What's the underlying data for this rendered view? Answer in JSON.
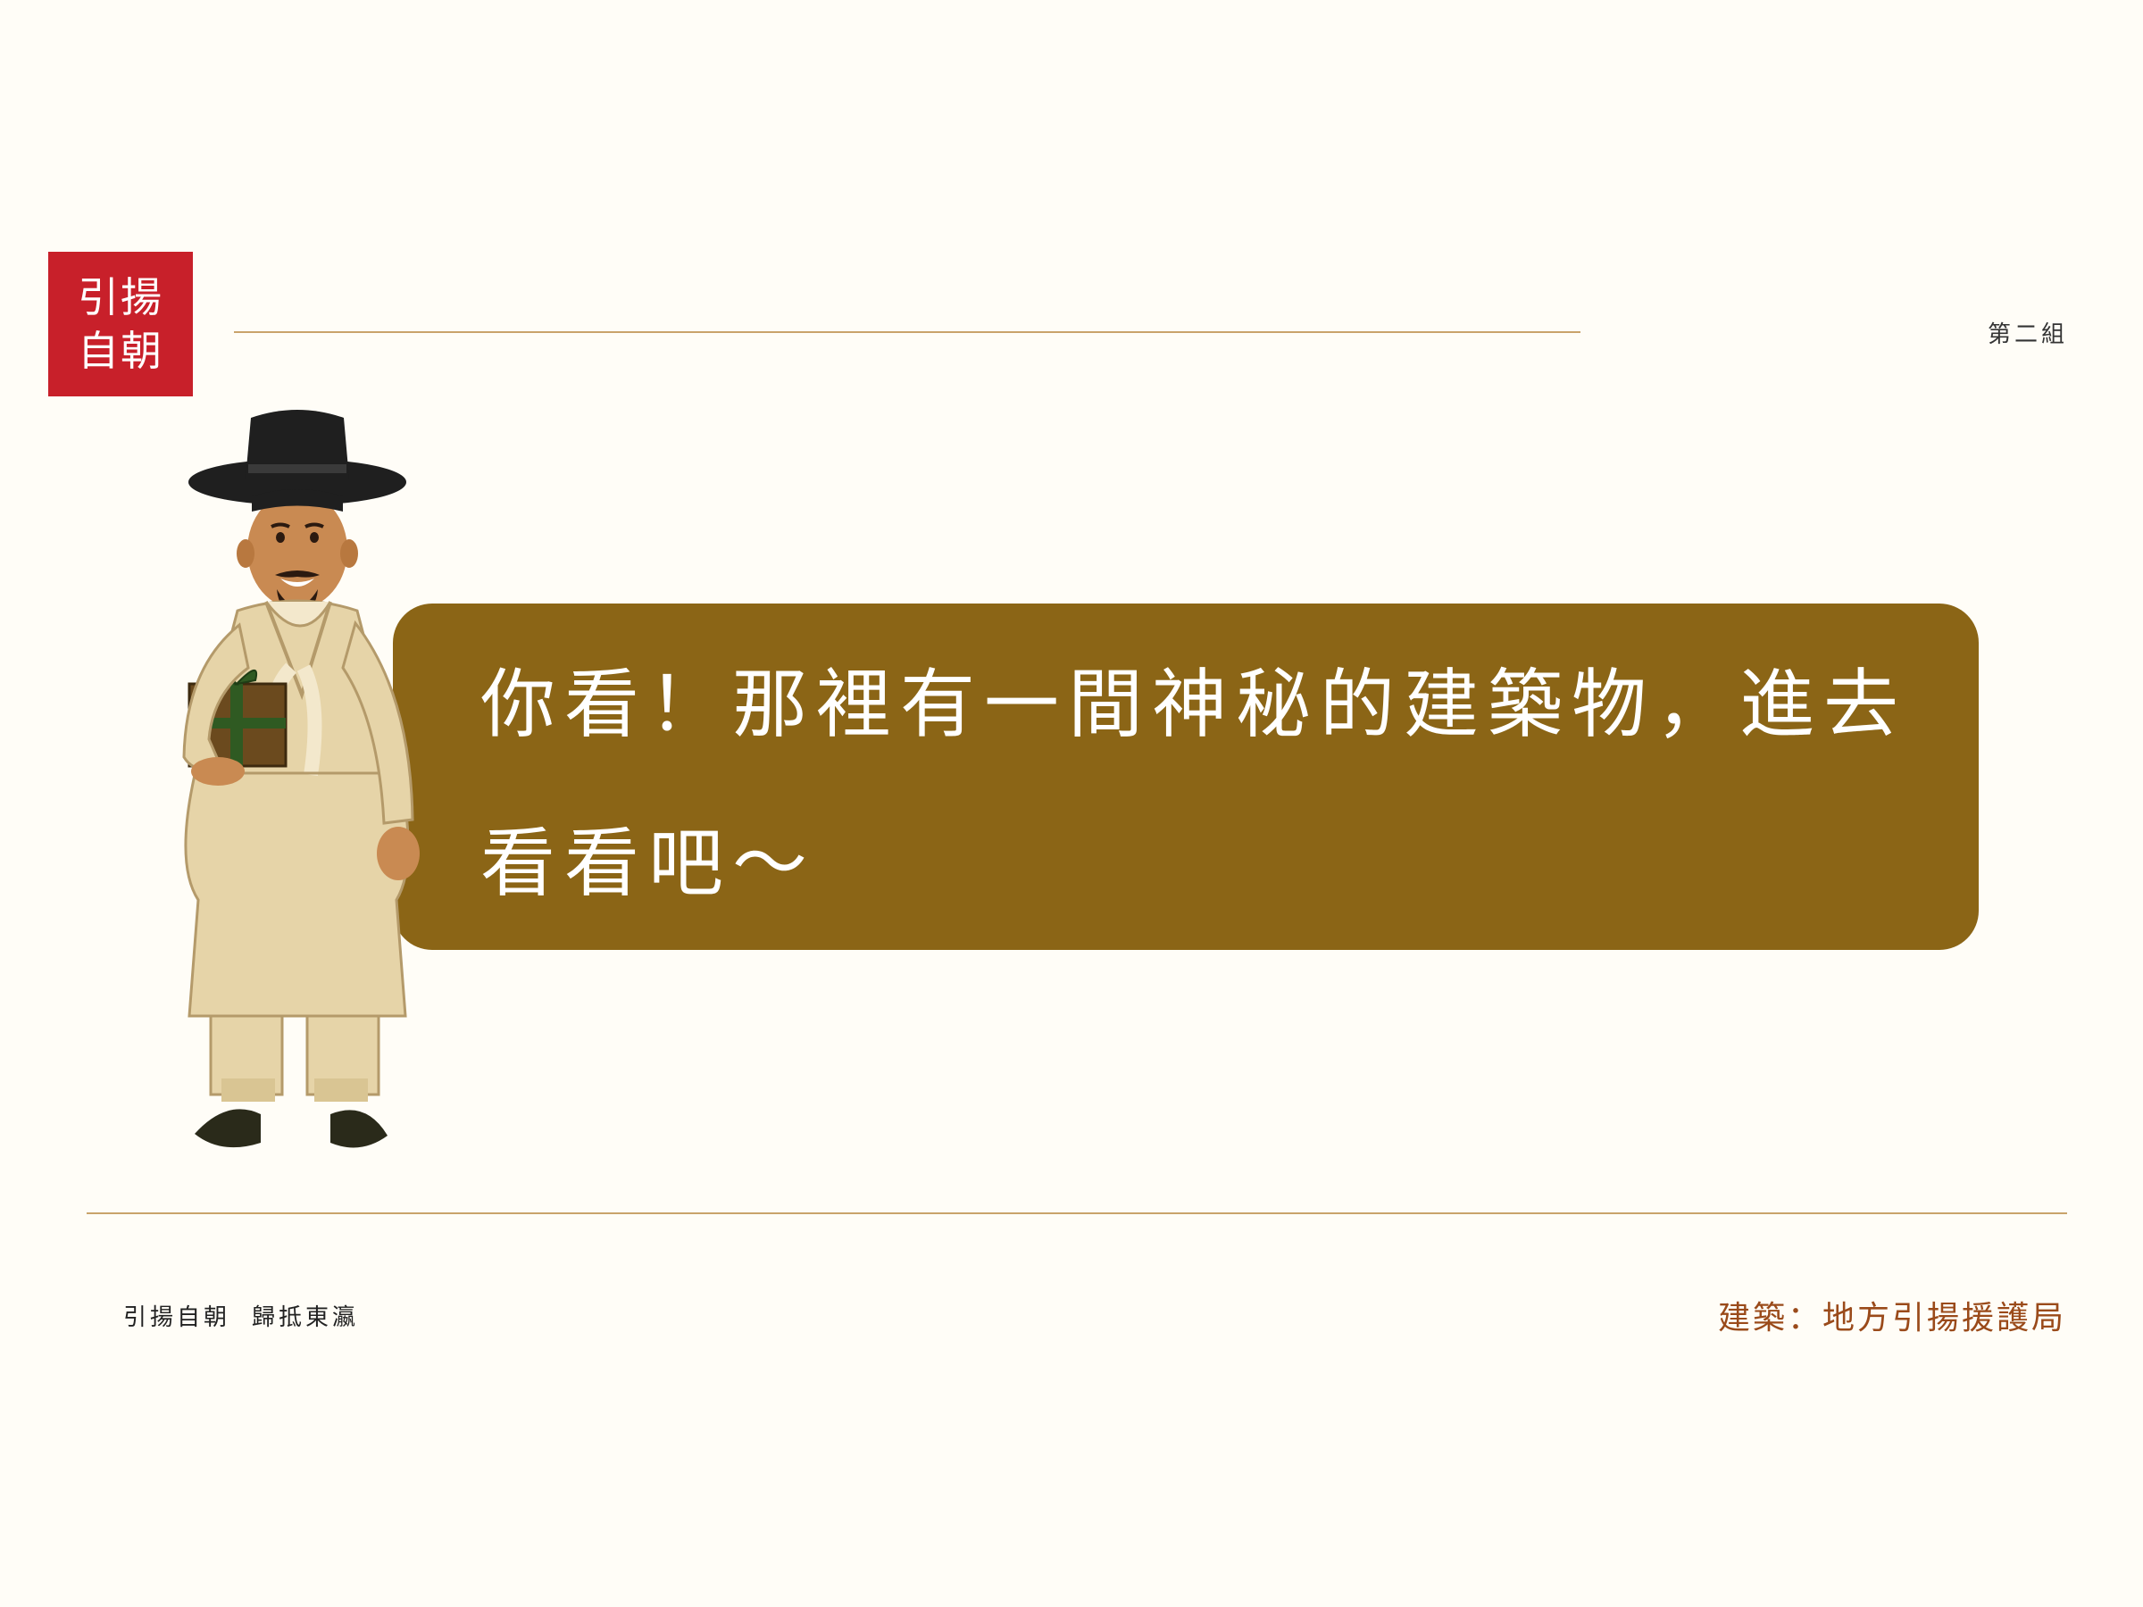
{
  "stamp": {
    "line1": "引揚",
    "line2": "自朝"
  },
  "header": {
    "group_label": "第二組"
  },
  "dialogue": {
    "text": "你看！那裡有一間神秘的建築物，進去看看吧～"
  },
  "footer": {
    "left_part1": "引揚自朝",
    "left_part2": "歸抵東瀛",
    "right": "建築：地方引揚援護局"
  },
  "colors": {
    "background": "#fffdf7",
    "stamp_red": "#c8202a",
    "bubble_brown": "#8b6516",
    "rule_gold": "#c9a36b",
    "footer_accent": "#9a4a1a"
  }
}
